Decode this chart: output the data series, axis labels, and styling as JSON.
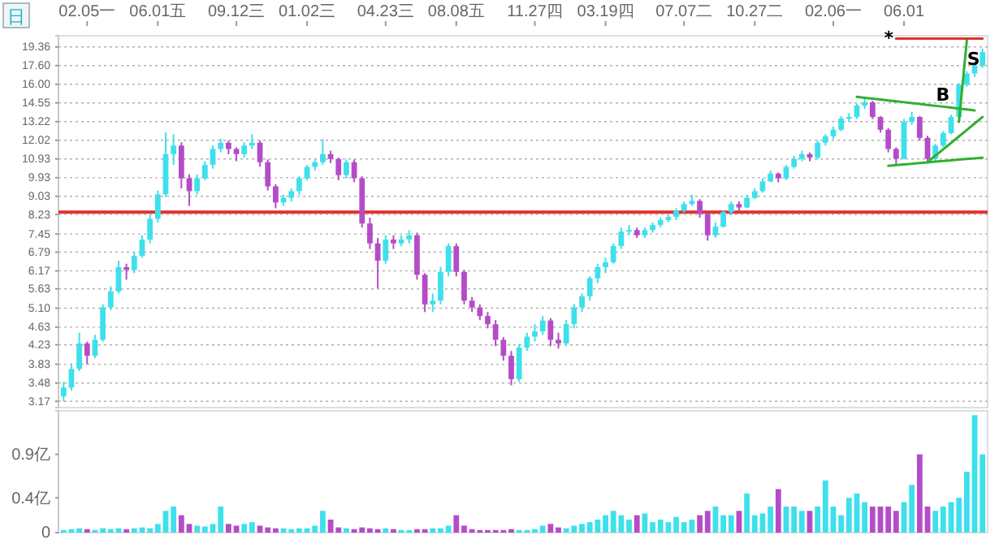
{
  "chart_data": [
    {
      "type": "candlestick",
      "log": true,
      "grid": "y",
      "categories": [
        null,
        null,
        null,
        "02.05一",
        null,
        null,
        null,
        null,
        null,
        null,
        null,
        null,
        "06.01五",
        null,
        null,
        null,
        null,
        null,
        null,
        null,
        null,
        null,
        "09.12三",
        null,
        null,
        null,
        null,
        null,
        null,
        null,
        null,
        "01.02三",
        null,
        null,
        null,
        null,
        null,
        null,
        null,
        null,
        null,
        "04.23三",
        null,
        null,
        null,
        null,
        null,
        null,
        null,
        null,
        "08.08五",
        null,
        null,
        null,
        null,
        null,
        null,
        null,
        null,
        null,
        "11.27四",
        null,
        null,
        null,
        null,
        null,
        null,
        null,
        null,
        "03.19四",
        null,
        null,
        null,
        null,
        null,
        null,
        null,
        null,
        null,
        "07.07二",
        null,
        null,
        null,
        null,
        null,
        null,
        null,
        null,
        "10.27二",
        null,
        null,
        null,
        null,
        null,
        null,
        null,
        null,
        null,
        "02.06一",
        null,
        null,
        null,
        null,
        null,
        null,
        null,
        null,
        "06.01",
        null,
        null,
        null,
        null,
        null,
        null,
        null,
        null,
        null,
        null
      ],
      "ohlc": [
        [
          3.25,
          3.5,
          3.17,
          3.4
        ],
        [
          3.4,
          3.85,
          3.35,
          3.74
        ],
        [
          3.74,
          4.5,
          3.7,
          4.26
        ],
        [
          4.26,
          4.3,
          3.83,
          4.0
        ],
        [
          4.0,
          4.45,
          3.95,
          4.34
        ],
        [
          4.34,
          5.2,
          4.3,
          5.12
        ],
        [
          5.12,
          5.7,
          5.05,
          5.56
        ],
        [
          5.56,
          6.5,
          5.5,
          6.29
        ],
        [
          6.29,
          6.4,
          5.9,
          6.2
        ],
        [
          6.2,
          6.8,
          6.1,
          6.66
        ],
        [
          6.66,
          7.4,
          6.6,
          7.24
        ],
        [
          7.24,
          8.2,
          7.1,
          8.05
        ],
        [
          8.05,
          9.3,
          7.9,
          9.12
        ],
        [
          9.12,
          12.5,
          9.0,
          11.2
        ],
        [
          11.2,
          12.4,
          10.6,
          11.7
        ],
        [
          11.7,
          11.9,
          9.4,
          9.9
        ],
        [
          9.9,
          10.1,
          8.6,
          9.27
        ],
        [
          9.27,
          10.1,
          9.1,
          9.9
        ],
        [
          9.9,
          10.8,
          9.8,
          10.6
        ],
        [
          10.6,
          11.7,
          10.4,
          11.5
        ],
        [
          11.5,
          12.1,
          11.3,
          11.87
        ],
        [
          11.87,
          12.0,
          11.2,
          11.5
        ],
        [
          11.5,
          11.6,
          10.8,
          11.2
        ],
        [
          11.2,
          11.9,
          11.0,
          11.7
        ],
        [
          11.7,
          12.4,
          11.5,
          11.87
        ],
        [
          11.87,
          12.0,
          10.5,
          10.75
        ],
        [
          10.75,
          10.9,
          9.3,
          9.5
        ],
        [
          9.5,
          9.6,
          8.5,
          8.75
        ],
        [
          8.75,
          9.1,
          8.6,
          8.96
        ],
        [
          8.96,
          9.4,
          8.8,
          9.27
        ],
        [
          9.27,
          10.0,
          9.1,
          9.9
        ],
        [
          9.9,
          10.6,
          9.8,
          10.49
        ],
        [
          10.49,
          10.9,
          10.3,
          10.75
        ],
        [
          10.75,
          12.1,
          10.6,
          11.2
        ],
        [
          11.2,
          11.4,
          10.7,
          10.93
        ],
        [
          10.93,
          11.0,
          9.8,
          10.06
        ],
        [
          10.06,
          10.9,
          9.9,
          10.75
        ],
        [
          10.75,
          10.9,
          9.7,
          9.9
        ],
        [
          9.9,
          10.0,
          7.7,
          7.86
        ],
        [
          7.86,
          8.1,
          6.9,
          7.1
        ],
        [
          7.1,
          7.3,
          5.65,
          6.5
        ],
        [
          6.5,
          7.4,
          6.4,
          7.24
        ],
        [
          7.24,
          7.4,
          6.9,
          7.1
        ],
        [
          7.1,
          7.4,
          7.0,
          7.24
        ],
        [
          7.24,
          7.6,
          7.1,
          7.4
        ],
        [
          7.4,
          7.5,
          5.9,
          6.05
        ],
        [
          6.05,
          6.1,
          5.0,
          5.2
        ],
        [
          5.2,
          5.5,
          5.0,
          5.3
        ],
        [
          5.3,
          6.3,
          5.2,
          6.14
        ],
        [
          6.14,
          7.1,
          6.0,
          7.0
        ],
        [
          7.0,
          7.1,
          6.0,
          6.14
        ],
        [
          6.14,
          6.2,
          5.2,
          5.3
        ],
        [
          5.3,
          5.4,
          5.0,
          5.12
        ],
        [
          5.12,
          5.2,
          4.8,
          4.9
        ],
        [
          4.9,
          5.0,
          4.6,
          4.7
        ],
        [
          4.7,
          4.8,
          4.2,
          4.34
        ],
        [
          4.34,
          4.4,
          3.9,
          4.0
        ],
        [
          4.0,
          4.1,
          3.44,
          3.55
        ],
        [
          3.55,
          4.25,
          3.5,
          4.17
        ],
        [
          4.17,
          4.5,
          4.1,
          4.41
        ],
        [
          4.41,
          4.7,
          4.3,
          4.53
        ],
        [
          4.53,
          4.9,
          4.45,
          4.79
        ],
        [
          4.79,
          4.85,
          4.2,
          4.34
        ],
        [
          4.34,
          4.5,
          4.15,
          4.26
        ],
        [
          4.26,
          4.8,
          4.2,
          4.7
        ],
        [
          4.7,
          5.2,
          4.6,
          5.12
        ],
        [
          5.12,
          5.5,
          5.0,
          5.42
        ],
        [
          5.42,
          6.0,
          5.3,
          5.94
        ],
        [
          5.94,
          6.4,
          5.8,
          6.29
        ],
        [
          6.29,
          6.6,
          6.1,
          6.45
        ],
        [
          6.45,
          7.1,
          6.4,
          7.0
        ],
        [
          7.0,
          7.7,
          6.9,
          7.54
        ],
        [
          7.54,
          7.8,
          7.4,
          7.6
        ],
        [
          7.6,
          7.7,
          7.3,
          7.4
        ],
        [
          7.4,
          7.7,
          7.3,
          7.6
        ],
        [
          7.6,
          7.9,
          7.5,
          7.8
        ],
        [
          7.8,
          8.1,
          7.7,
          8.0
        ],
        [
          8.0,
          8.2,
          7.9,
          8.13
        ],
        [
          8.13,
          8.5,
          8.0,
          8.4
        ],
        [
          8.4,
          8.8,
          8.3,
          8.68
        ],
        [
          8.68,
          9.1,
          8.6,
          8.82
        ],
        [
          8.82,
          8.9,
          8.1,
          8.26
        ],
        [
          8.26,
          8.3,
          7.2,
          7.4
        ],
        [
          7.4,
          7.9,
          7.3,
          7.73
        ],
        [
          7.73,
          8.4,
          7.7,
          8.33
        ],
        [
          8.33,
          8.8,
          8.2,
          8.68
        ],
        [
          8.68,
          8.8,
          8.4,
          8.53
        ],
        [
          8.53,
          9.1,
          8.5,
          8.96
        ],
        [
          8.96,
          9.4,
          8.9,
          9.27
        ],
        [
          9.27,
          9.9,
          9.2,
          9.74
        ],
        [
          9.74,
          10.3,
          9.7,
          10.14
        ],
        [
          10.14,
          10.2,
          9.7,
          9.9
        ],
        [
          9.9,
          10.6,
          9.8,
          10.49
        ],
        [
          10.49,
          11.1,
          10.4,
          10.93
        ],
        [
          10.93,
          11.4,
          10.8,
          11.2
        ],
        [
          11.2,
          11.3,
          10.8,
          11.0
        ],
        [
          11.0,
          12.0,
          10.9,
          11.87
        ],
        [
          11.87,
          12.4,
          11.7,
          12.27
        ],
        [
          12.27,
          12.9,
          12.1,
          12.68
        ],
        [
          12.68,
          13.6,
          12.6,
          13.43
        ],
        [
          13.43,
          13.8,
          13.2,
          13.54
        ],
        [
          13.54,
          14.5,
          13.4,
          14.35
        ],
        [
          14.35,
          14.9,
          14.1,
          14.59
        ],
        [
          14.59,
          14.7,
          13.4,
          13.54
        ],
        [
          13.54,
          13.6,
          12.5,
          12.68
        ],
        [
          12.68,
          12.8,
          11.3,
          11.5
        ],
        [
          11.5,
          11.6,
          10.6,
          10.93
        ],
        [
          10.93,
          13.4,
          10.9,
          13.2
        ],
        [
          13.2,
          13.9,
          13.0,
          13.54
        ],
        [
          13.54,
          13.6,
          12.0,
          12.17
        ],
        [
          12.17,
          12.3,
          10.7,
          10.93
        ],
        [
          10.93,
          11.8,
          10.8,
          11.7
        ],
        [
          11.7,
          12.6,
          11.6,
          12.47
        ],
        [
          12.47,
          13.7,
          12.4,
          13.54
        ],
        [
          13.54,
          16.1,
          13.4,
          15.97
        ],
        [
          15.97,
          17.1,
          15.8,
          16.9
        ],
        [
          16.9,
          17.8,
          16.6,
          17.6
        ],
        [
          17.6,
          19.2,
          17.4,
          18.85
        ]
      ],
      "colors": [
        "#3ee0ec",
        "#3ee0ec",
        "#3ee0ec",
        "#b44cc8",
        "#3ee0ec",
        "#3ee0ec",
        "#3ee0ec",
        "#3ee0ec",
        "#b44cc8",
        "#3ee0ec",
        "#3ee0ec",
        "#3ee0ec",
        "#3ee0ec",
        "#3ee0ec",
        "#3ee0ec",
        "#b44cc8",
        "#b44cc8",
        "#3ee0ec",
        "#3ee0ec",
        "#3ee0ec",
        "#3ee0ec",
        "#b44cc8",
        "#b44cc8",
        "#3ee0ec",
        "#3ee0ec",
        "#b44cc8",
        "#b44cc8",
        "#b44cc8",
        "#3ee0ec",
        "#3ee0ec",
        "#3ee0ec",
        "#3ee0ec",
        "#3ee0ec",
        "#3ee0ec",
        "#b44cc8",
        "#b44cc8",
        "#3ee0ec",
        "#b44cc8",
        "#b44cc8",
        "#b44cc8",
        "#b44cc8",
        "#3ee0ec",
        "#b44cc8",
        "#3ee0ec",
        "#3ee0ec",
        "#b44cc8",
        "#b44cc8",
        "#3ee0ec",
        "#3ee0ec",
        "#3ee0ec",
        "#b44cc8",
        "#b44cc8",
        "#b44cc8",
        "#b44cc8",
        "#b44cc8",
        "#b44cc8",
        "#b44cc8",
        "#b44cc8",
        "#3ee0ec",
        "#3ee0ec",
        "#3ee0ec",
        "#3ee0ec",
        "#b44cc8",
        "#b44cc8",
        "#3ee0ec",
        "#3ee0ec",
        "#3ee0ec",
        "#3ee0ec",
        "#3ee0ec",
        "#3ee0ec",
        "#3ee0ec",
        "#3ee0ec",
        "#3ee0ec",
        "#b44cc8",
        "#3ee0ec",
        "#3ee0ec",
        "#3ee0ec",
        "#3ee0ec",
        "#3ee0ec",
        "#3ee0ec",
        "#3ee0ec",
        "#b44cc8",
        "#b44cc8",
        "#3ee0ec",
        "#3ee0ec",
        "#3ee0ec",
        "#b44cc8",
        "#3ee0ec",
        "#3ee0ec",
        "#3ee0ec",
        "#3ee0ec",
        "#b44cc8",
        "#3ee0ec",
        "#3ee0ec",
        "#3ee0ec",
        "#b44cc8",
        "#3ee0ec",
        "#3ee0ec",
        "#3ee0ec",
        "#3ee0ec",
        "#3ee0ec",
        "#3ee0ec",
        "#3ee0ec",
        "#b44cc8",
        "#b44cc8",
        "#b44cc8",
        "#b44cc8",
        "#3ee0ec",
        "#3ee0ec",
        "#b44cc8",
        "#b44cc8",
        "#3ee0ec",
        "#3ee0ec",
        "#3ee0ec",
        "#3ee0ec",
        "#3ee0ec",
        "#3ee0ec",
        "#3ee0ec"
      ],
      "ylim": [
        3.07,
        20.5
      ],
      "yticks": [
        3.17,
        3.48,
        3.83,
        4.23,
        4.63,
        {
          "value": 5.1,
          "label": "5.10"
        },
        5.63,
        6.17,
        6.79,
        7.45,
        8.23,
        9.03,
        9.93,
        10.93,
        12.02,
        13.22,
        14.55,
        {
          "value": 16,
          "label": "16.00"
        },
        {
          "value": 17.6,
          "label": "17.60"
        },
        19.36
      ],
      "ref_lines": [
        {
          "axis": "y",
          "value": 8.33,
          "color": "#e03030"
        }
      ],
      "series": [
        {
          "type": "line",
          "color": "#30b030",
          "values": [
            null,
            null,
            null,
            null,
            null,
            null,
            null,
            null,
            null,
            null,
            null,
            null,
            null,
            null,
            null,
            null,
            null,
            null,
            null,
            null,
            null,
            null,
            null,
            null,
            null,
            null,
            null,
            null,
            null,
            null,
            null,
            null,
            null,
            null,
            null,
            null,
            null,
            null,
            null,
            null,
            null,
            null,
            null,
            null,
            null,
            null,
            null,
            null,
            null,
            null,
            null,
            null,
            null,
            null,
            null,
            null,
            null,
            null,
            null,
            null,
            null,
            null,
            null,
            null,
            null,
            null,
            null,
            null,
            null,
            null,
            null,
            null,
            null,
            null,
            null,
            null,
            null,
            null,
            null,
            null,
            null,
            null,
            null,
            null,
            null,
            null,
            null,
            null,
            null,
            null,
            null,
            null,
            null,
            null,
            null,
            null,
            null,
            null,
            null,
            null,
            null,
            15.0,
            14.93,
            14.87,
            14.8,
            14.73,
            14.67,
            14.6,
            14.53,
            14.47,
            14.4,
            14.33,
            14.27,
            14.2,
            14.13,
            14.07,
            14.0,
            null
          ]
        },
        {
          "type": "line",
          "color": "#30b030",
          "values": [
            null,
            null,
            null,
            null,
            null,
            null,
            null,
            null,
            null,
            null,
            null,
            null,
            null,
            null,
            null,
            null,
            null,
            null,
            null,
            null,
            null,
            null,
            null,
            null,
            null,
            null,
            null,
            null,
            null,
            null,
            null,
            null,
            null,
            null,
            null,
            null,
            null,
            null,
            null,
            null,
            null,
            null,
            null,
            null,
            null,
            null,
            null,
            null,
            null,
            null,
            null,
            null,
            null,
            null,
            null,
            null,
            null,
            null,
            null,
            null,
            null,
            null,
            null,
            null,
            null,
            null,
            null,
            null,
            null,
            null,
            null,
            null,
            null,
            null,
            null,
            null,
            null,
            null,
            null,
            null,
            null,
            null,
            null,
            null,
            null,
            null,
            null,
            null,
            null,
            null,
            null,
            null,
            null,
            null,
            null,
            null,
            null,
            null,
            null,
            null,
            null,
            null,
            null,
            null,
            null,
            10.55,
            10.59,
            10.63,
            10.66,
            10.7,
            10.74,
            10.78,
            10.81,
            10.85,
            10.89,
            10.93,
            10.96,
            11.0
          ]
        },
        {
          "type": "line",
          "color": "#30b030",
          "values": [
            null,
            null,
            null,
            null,
            null,
            null,
            null,
            null,
            null,
            null,
            null,
            null,
            null,
            null,
            null,
            null,
            null,
            null,
            null,
            null,
            null,
            null,
            null,
            null,
            null,
            null,
            null,
            null,
            null,
            null,
            null,
            null,
            null,
            null,
            null,
            null,
            null,
            null,
            null,
            null,
            null,
            null,
            null,
            null,
            null,
            null,
            null,
            null,
            null,
            null,
            null,
            null,
            null,
            null,
            null,
            null,
            null,
            null,
            null,
            null,
            null,
            null,
            null,
            null,
            null,
            null,
            null,
            null,
            null,
            null,
            null,
            null,
            null,
            null,
            null,
            null,
            null,
            null,
            null,
            null,
            null,
            null,
            null,
            null,
            null,
            null,
            null,
            null,
            null,
            null,
            null,
            null,
            null,
            null,
            null,
            null,
            null,
            null,
            null,
            null,
            null,
            null,
            null,
            null,
            null,
            null,
            null,
            null,
            null,
            null,
            10.75,
            11.11,
            11.48,
            11.86,
            12.26,
            12.67,
            13.1,
            13.54
          ]
        },
        {
          "type": "line",
          "color": "#30b030",
          "values": [
            null,
            null,
            null,
            null,
            null,
            null,
            null,
            null,
            null,
            null,
            null,
            null,
            null,
            null,
            null,
            null,
            null,
            null,
            null,
            null,
            null,
            null,
            null,
            null,
            null,
            null,
            null,
            null,
            null,
            null,
            null,
            null,
            null,
            null,
            null,
            null,
            null,
            null,
            null,
            null,
            null,
            null,
            null,
            null,
            null,
            null,
            null,
            null,
            null,
            null,
            null,
            null,
            null,
            null,
            null,
            null,
            null,
            null,
            null,
            null,
            null,
            null,
            null,
            null,
            null,
            null,
            null,
            null,
            null,
            null,
            null,
            null,
            null,
            null,
            null,
            null,
            null,
            null,
            null,
            null,
            null,
            null,
            null,
            null,
            null,
            null,
            null,
            null,
            null,
            null,
            null,
            null,
            null,
            null,
            null,
            null,
            null,
            null,
            null,
            null,
            null,
            null,
            null,
            null,
            null,
            null,
            null,
            null,
            null,
            null,
            null,
            null,
            null,
            null,
            13.2,
            20.0,
            null,
            null
          ]
        },
        {
          "type": "line",
          "color": "#e03030",
          "values": [
            null,
            null,
            null,
            null,
            null,
            null,
            null,
            null,
            null,
            null,
            null,
            null,
            null,
            null,
            null,
            null,
            null,
            null,
            null,
            null,
            null,
            null,
            null,
            null,
            null,
            null,
            null,
            null,
            null,
            null,
            null,
            null,
            null,
            null,
            null,
            null,
            null,
            null,
            null,
            null,
            null,
            null,
            null,
            null,
            null,
            null,
            null,
            null,
            null,
            null,
            null,
            null,
            null,
            null,
            null,
            null,
            null,
            null,
            null,
            null,
            null,
            null,
            null,
            null,
            null,
            null,
            null,
            null,
            null,
            null,
            null,
            null,
            null,
            null,
            null,
            null,
            null,
            null,
            null,
            null,
            null,
            null,
            null,
            null,
            null,
            null,
            null,
            null,
            null,
            null,
            null,
            null,
            null,
            null,
            null,
            null,
            null,
            null,
            null,
            null,
            null,
            null,
            null,
            null,
            null,
            null,
            20.2,
            20.2,
            20.2,
            20.2,
            20.2,
            20.2,
            20.2,
            20.2,
            20.2,
            20.2,
            20.2,
            20.2
          ]
        }
      ],
      "annotations": [
        "日",
        "B",
        "S",
        "*"
      ]
    },
    {
      "type": "bar",
      "tick_labels": "y",
      "categories": [
        null,
        null,
        null,
        null,
        null,
        null,
        null,
        null,
        null,
        null,
        null,
        null,
        null,
        null,
        null,
        null,
        null,
        null,
        null,
        null,
        null,
        null,
        null,
        null,
        null,
        null,
        null,
        null,
        null,
        null,
        null,
        null,
        null,
        null,
        null,
        null,
        null,
        null,
        null,
        null,
        null,
        null,
        null,
        null,
        null,
        null,
        null,
        null,
        null,
        null,
        null,
        null,
        null,
        null,
        null,
        null,
        null,
        null,
        null,
        null,
        null,
        null,
        null,
        null,
        null,
        null,
        null,
        null,
        null,
        null,
        null,
        null,
        null,
        null,
        null,
        null,
        null,
        null,
        null,
        null,
        null,
        null,
        null,
        null,
        null,
        null,
        null,
        null,
        null,
        null,
        null,
        null,
        null,
        null,
        null,
        null,
        null,
        null,
        null,
        null,
        null,
        null,
        null,
        null,
        null,
        null,
        null,
        null,
        null,
        null,
        null,
        null,
        null,
        null,
        null,
        null,
        null,
        null
      ],
      "values": [
        0.03,
        0.04,
        0.05,
        0.04,
        0.03,
        0.05,
        0.04,
        0.05,
        0.04,
        0.05,
        0.06,
        0.05,
        0.1,
        0.25,
        0.3,
        0.2,
        0.1,
        0.08,
        0.07,
        0.1,
        0.3,
        0.1,
        0.08,
        0.1,
        0.12,
        0.08,
        0.06,
        0.05,
        0.05,
        0.04,
        0.05,
        0.05,
        0.08,
        0.25,
        0.15,
        0.06,
        0.05,
        0.04,
        0.06,
        0.05,
        0.04,
        0.05,
        0.04,
        0.03,
        0.03,
        0.04,
        0.04,
        0.05,
        0.05,
        0.08,
        0.2,
        0.08,
        0.04,
        0.03,
        0.03,
        0.03,
        0.03,
        0.04,
        0.03,
        0.03,
        0.04,
        0.08,
        0.1,
        0.06,
        0.05,
        0.08,
        0.1,
        0.12,
        0.15,
        0.2,
        0.25,
        0.2,
        0.15,
        0.2,
        0.22,
        0.12,
        0.15,
        0.12,
        0.18,
        0.12,
        0.15,
        0.2,
        0.25,
        0.3,
        0.2,
        0.2,
        0.25,
        0.45,
        0.2,
        0.22,
        0.3,
        0.5,
        0.3,
        0.3,
        0.25,
        0.25,
        0.3,
        0.6,
        0.3,
        0.2,
        0.4,
        0.45,
        0.35,
        0.3,
        0.3,
        0.3,
        0.25,
        0.35,
        0.55,
        0.9,
        0.3,
        0.25,
        0.3,
        0.35,
        0.4,
        0.7,
        1.35,
        0.9
      ],
      "colors": [
        "#3ee0ec",
        "#3ee0ec",
        "#3ee0ec",
        "#b44cc8",
        "#3ee0ec",
        "#3ee0ec",
        "#3ee0ec",
        "#3ee0ec",
        "#b44cc8",
        "#3ee0ec",
        "#3ee0ec",
        "#3ee0ec",
        "#3ee0ec",
        "#3ee0ec",
        "#3ee0ec",
        "#b44cc8",
        "#b44cc8",
        "#3ee0ec",
        "#3ee0ec",
        "#3ee0ec",
        "#3ee0ec",
        "#b44cc8",
        "#b44cc8",
        "#3ee0ec",
        "#3ee0ec",
        "#b44cc8",
        "#b44cc8",
        "#b44cc8",
        "#3ee0ec",
        "#3ee0ec",
        "#3ee0ec",
        "#3ee0ec",
        "#3ee0ec",
        "#3ee0ec",
        "#b44cc8",
        "#b44cc8",
        "#3ee0ec",
        "#b44cc8",
        "#b44cc8",
        "#b44cc8",
        "#b44cc8",
        "#3ee0ec",
        "#b44cc8",
        "#3ee0ec",
        "#3ee0ec",
        "#b44cc8",
        "#b44cc8",
        "#3ee0ec",
        "#3ee0ec",
        "#3ee0ec",
        "#b44cc8",
        "#b44cc8",
        "#b44cc8",
        "#b44cc8",
        "#b44cc8",
        "#b44cc8",
        "#b44cc8",
        "#b44cc8",
        "#3ee0ec",
        "#3ee0ec",
        "#3ee0ec",
        "#3ee0ec",
        "#b44cc8",
        "#b44cc8",
        "#3ee0ec",
        "#3ee0ec",
        "#3ee0ec",
        "#3ee0ec",
        "#3ee0ec",
        "#3ee0ec",
        "#3ee0ec",
        "#3ee0ec",
        "#3ee0ec",
        "#b44cc8",
        "#3ee0ec",
        "#3ee0ec",
        "#3ee0ec",
        "#3ee0ec",
        "#3ee0ec",
        "#3ee0ec",
        "#3ee0ec",
        "#b44cc8",
        "#b44cc8",
        "#3ee0ec",
        "#3ee0ec",
        "#3ee0ec",
        "#b44cc8",
        "#3ee0ec",
        "#3ee0ec",
        "#3ee0ec",
        "#3ee0ec",
        "#b44cc8",
        "#3ee0ec",
        "#3ee0ec",
        "#3ee0ec",
        "#b44cc8",
        "#3ee0ec",
        "#3ee0ec",
        "#3ee0ec",
        "#3ee0ec",
        "#3ee0ec",
        "#3ee0ec",
        "#3ee0ec",
        "#b44cc8",
        "#b44cc8",
        "#b44cc8",
        "#b44cc8",
        "#3ee0ec",
        "#3ee0ec",
        "#b44cc8",
        "#b44cc8",
        "#3ee0ec",
        "#3ee0ec",
        "#3ee0ec",
        "#3ee0ec",
        "#3ee0ec",
        "#3ee0ec",
        "#3ee0ec"
      ],
      "ylim": [
        0,
        1.4
      ],
      "yticks": [
        0,
        {
          "value": 0.4,
          "label": "0.4亿"
        },
        {
          "value": 0.9,
          "label": "0.9亿"
        }
      ]
    }
  ]
}
